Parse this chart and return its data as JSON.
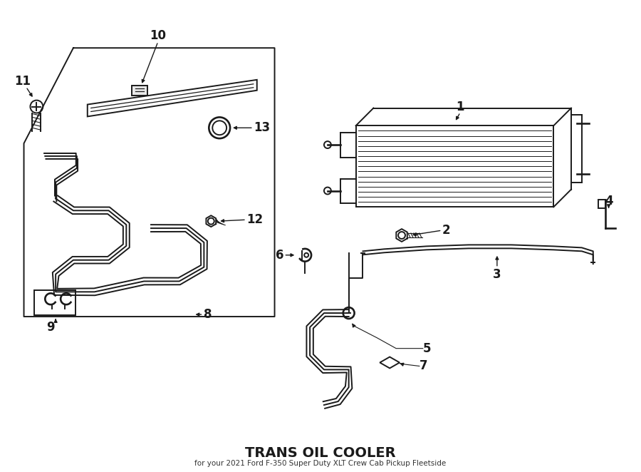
{
  "title": "TRANS OIL COOLER",
  "subtitle": "for your 2021 Ford F-350 Super Duty XLT Crew Cab Pickup Fleetside",
  "bg_color": "#ffffff",
  "line_color": "#1a1a1a",
  "lw_main": 1.4,
  "lw_thick": 2.0,
  "lw_thin": 0.9
}
